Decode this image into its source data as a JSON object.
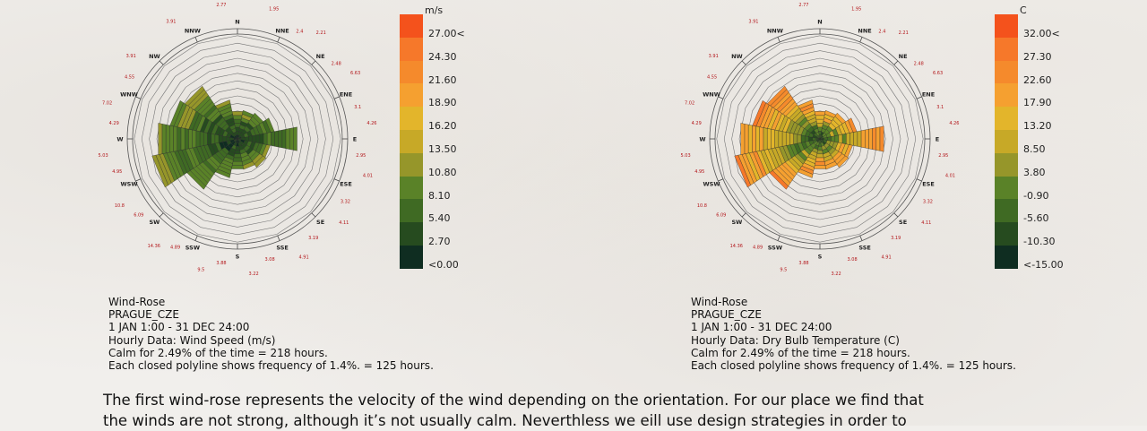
{
  "chart_data": [
    {
      "type": "wind-rose",
      "legend_unit": "m/s",
      "legend_labels": [
        "27.00<",
        "24.30",
        "21.60",
        "18.90",
        "16.20",
        "13.50",
        "10.80",
        "8.10",
        "5.40",
        "2.70",
        "<0.00"
      ],
      "legend_colors": [
        "#f4521c",
        "#f6782a",
        "#f58a2c",
        "#f5a030",
        "#e3b52b",
        "#c7a927",
        "#96962a",
        "#5a8228",
        "#3f6a23",
        "#264b1f",
        "#0f2d21"
      ],
      "directions": [
        "N",
        "NNE",
        "NE",
        "ENE",
        "E",
        "ESE",
        "SE",
        "SSE",
        "S",
        "SSW",
        "SW",
        "WSW",
        "W",
        "WNW",
        "NW",
        "NNW"
      ],
      "max_frequency_values": [
        "2.77",
        "1.95",
        "2.21",
        "6.63",
        "4.26",
        "4.01",
        "4.11",
        "4.91",
        "3.22",
        "9.5",
        "14.36",
        "10.8",
        "5.03",
        "7.02",
        "3.91",
        "3.91"
      ],
      "inner_values": [
        "",
        "2.4",
        "2.48",
        "3.1",
        "2.95",
        "3.32",
        "3.19",
        "3.08",
        "3.88",
        "4.89",
        "6.09",
        "4.95",
        "4.29",
        "4.55",
        "",
        ""
      ],
      "petal_frequency_pct": [
        5.2,
        5.4,
        5.8,
        7.0,
        11.3,
        6.2,
        6.4,
        5.8,
        5.7,
        7.4,
        11.3,
        16.2,
        15.0,
        12.8,
        11.8,
        7.4
      ],
      "rings": 13,
      "ring_frequency_pct": 1.4,
      "info": {
        "title": "Wind-Rose",
        "station": "PRAGUE_CZE",
        "period": "1 JAN 1:00 - 31 DEC 24:00",
        "data": "Hourly Data: Wind Speed (m/s)",
        "calm": "Calm for 2.49% of the time = 218 hours.",
        "polyline": "Each closed polyline shows frequency of 1.4%. = 125 hours."
      }
    },
    {
      "type": "wind-rose",
      "legend_unit": "C",
      "legend_labels": [
        "32.00<",
        "27.30",
        "22.60",
        "17.90",
        "13.20",
        "8.50",
        "3.80",
        "-0.90",
        "-5.60",
        "-10.30",
        "<-15.00"
      ],
      "legend_colors": [
        "#f4521c",
        "#f6782a",
        "#f58a2c",
        "#f5a030",
        "#e3b52b",
        "#c7a927",
        "#96962a",
        "#5a8228",
        "#3f6a23",
        "#264b1f",
        "#0f2d21"
      ],
      "directions": [
        "N",
        "NNE",
        "NE",
        "ENE",
        "E",
        "ESE",
        "SE",
        "SSE",
        "S",
        "SSW",
        "SW",
        "WSW",
        "W",
        "WNW",
        "NW",
        "NNW"
      ],
      "max_frequency_values": [
        "2.77",
        "1.95",
        "2.21",
        "6.63",
        "4.26",
        "4.01",
        "4.11",
        "4.91",
        "3.22",
        "9.5",
        "14.36",
        "10.8",
        "5.03",
        "7.02",
        "3.91",
        "3.91"
      ],
      "inner_values": [
        "",
        "2.4",
        "2.48",
        "3.1",
        "2.95",
        "3.32",
        "3.19",
        "3.08",
        "3.88",
        "4.89",
        "6.09",
        "4.95",
        "4.29",
        "4.55",
        "",
        ""
      ],
      "petal_frequency_pct": [
        5.2,
        5.4,
        5.8,
        7.0,
        12.1,
        6.2,
        6.4,
        5.8,
        5.7,
        7.4,
        11.3,
        16.2,
        15.0,
        12.8,
        11.8,
        7.4
      ],
      "rings": 13,
      "ring_frequency_pct": 1.4,
      "info": {
        "title": "Wind-Rose",
        "station": "PRAGUE_CZE",
        "period": "1 JAN 1:00 - 31 DEC 24:00",
        "data": "Hourly Data: Dry Bulb Temperature (C)",
        "calm": "Calm for 2.49% of the time = 218 hours.",
        "polyline": "Each closed polyline shows frequency of 1.4%. = 125 hours."
      }
    }
  ],
  "caption": {
    "line1": "The first wind-rose represents the velocity of the wind depending on the orientation. For our place we find that",
    "line2": "the winds are not strong, although it’s not usually calm. Neverthless we eill use design strategies in order to"
  }
}
